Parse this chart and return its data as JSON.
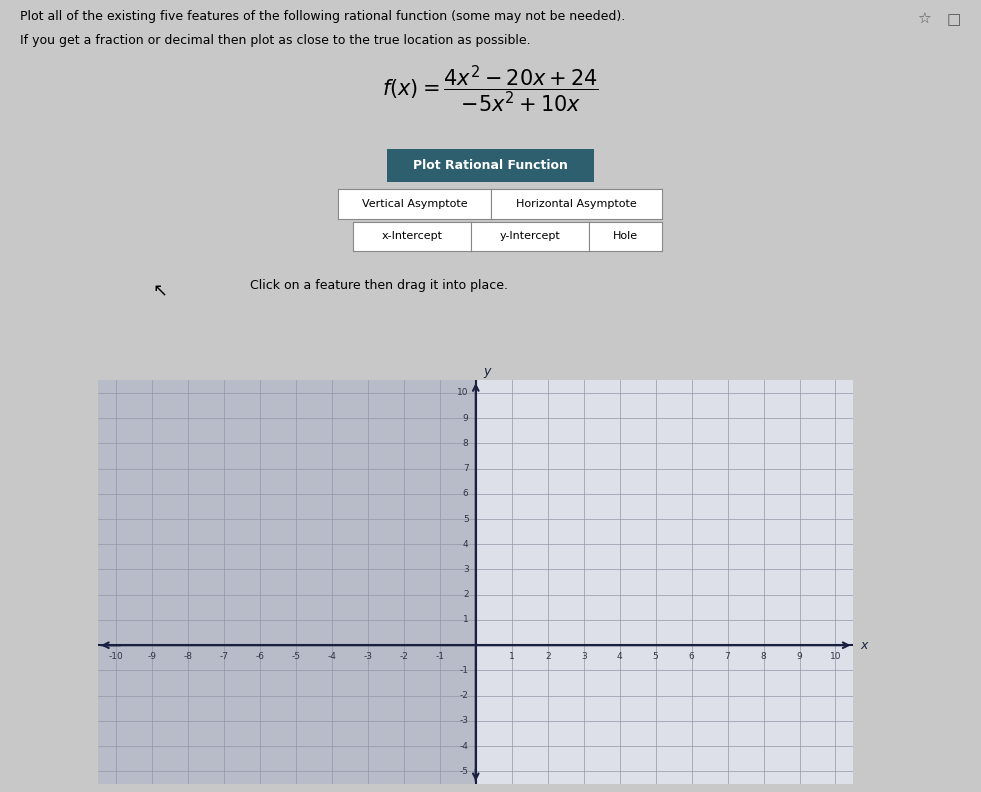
{
  "title_line1": "Plot all of the existing five features of the following rational function (some may not be needed).",
  "title_line2": "If you get a fraction or decimal then plot as close to the true location as possible.",
  "button_label": "Plot Rational Function",
  "button_bg": "#2d5f6e",
  "button_text_color": "#ffffff",
  "feature_button_bg": "#ffffff",
  "feature_button_border": "#888888",
  "instruction": "Click on a feature then drag it into place.",
  "bg_color": "#c8c8c8",
  "graph_bg_left": "#b8bcc8",
  "graph_bg_right": "#dde0e8",
  "grid_color": "#9098a8",
  "axis_color": "#1a2040",
  "tick_color": "#333344",
  "xlim": [
    -10.5,
    10.5
  ],
  "ylim": [
    -5.5,
    10.5
  ],
  "xlabel": "x",
  "ylabel": "y",
  "star_color": "#888888",
  "title_fontsize": 9.0,
  "formula_fontsize": 15,
  "tick_fontsize": 6.5
}
